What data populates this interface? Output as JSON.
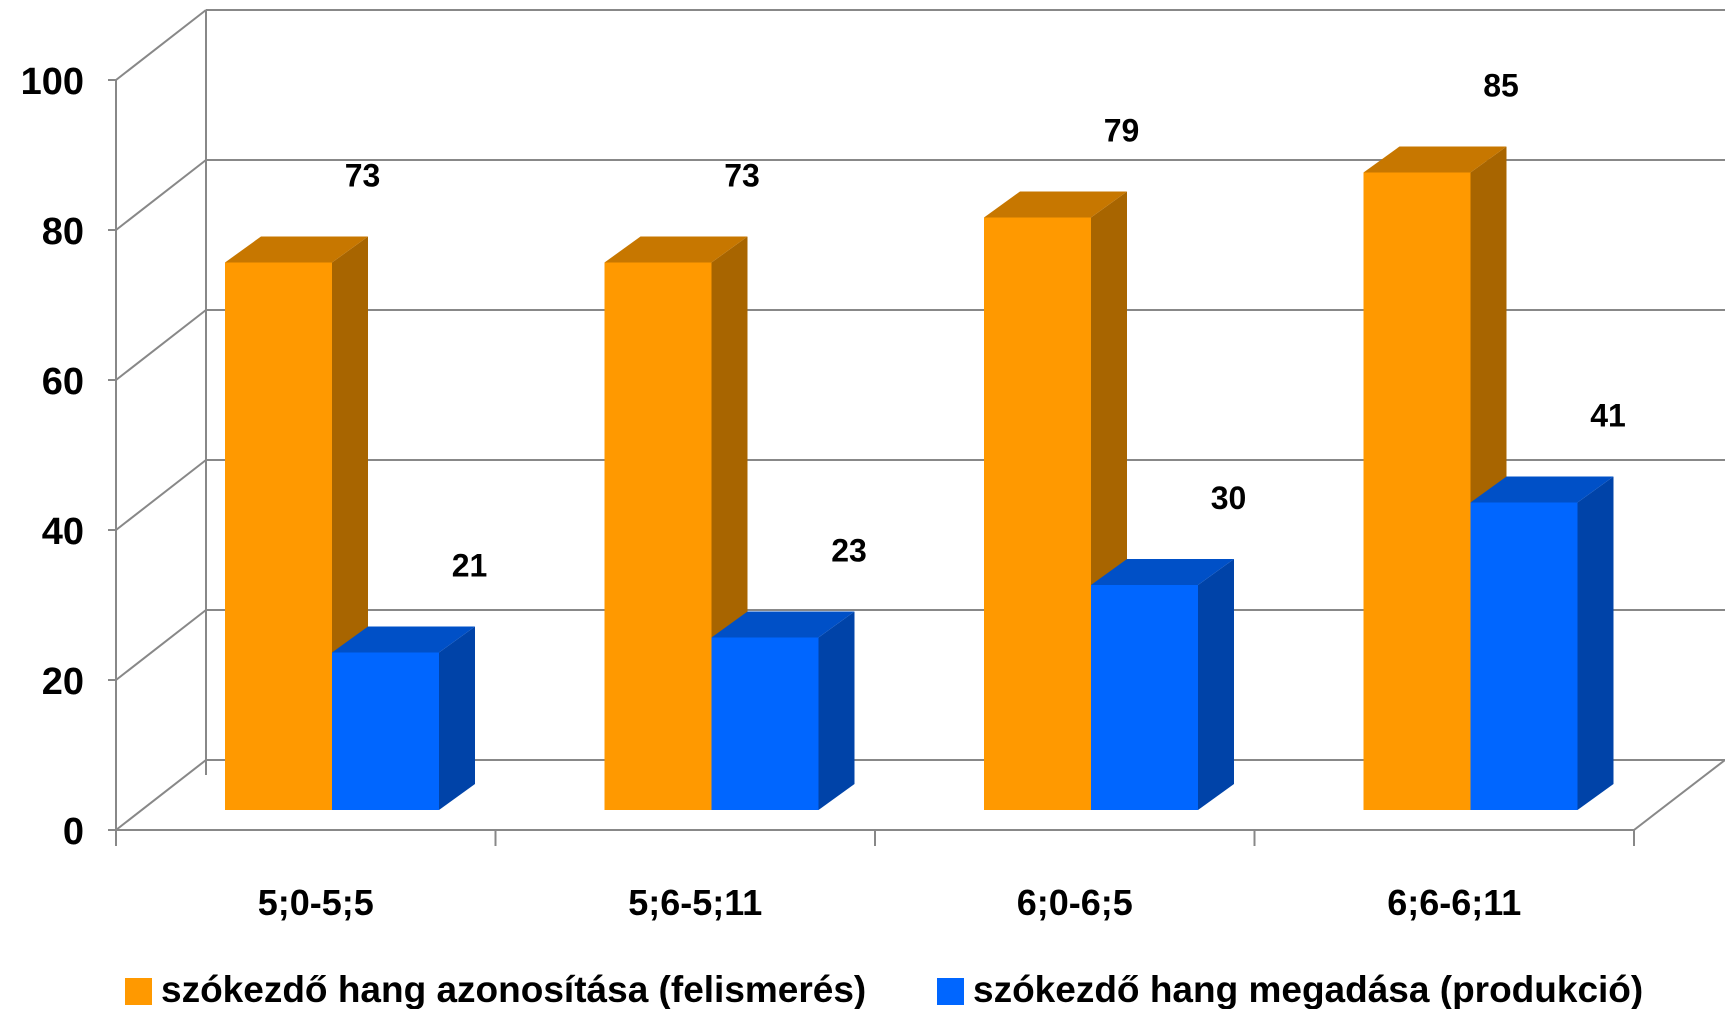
{
  "chart_data": {
    "type": "bar",
    "style": "3d-clustered",
    "categories": [
      "5;0-5;5",
      "5;6-5;11",
      "6;0-6;5",
      "6;6-6;11"
    ],
    "series": [
      {
        "name": "szókezdő hang azonosítása (felismerés)",
        "values": [
          73,
          73,
          79,
          85
        ],
        "color": "#FF9900"
      },
      {
        "name": "szókezdő hang megadása (produkció)",
        "values": [
          21,
          23,
          30,
          41
        ],
        "color": "#0066FF"
      }
    ],
    "yticks": [
      "0",
      "20",
      "40",
      "60",
      "80",
      "100"
    ],
    "ylim": [
      0,
      100
    ],
    "grid": true,
    "legend_position": "bottom",
    "data_labels": true
  }
}
